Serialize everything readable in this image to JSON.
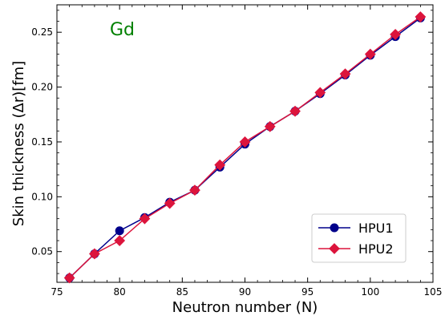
{
  "chart_data": {
    "type": "line",
    "annotation": "Gd",
    "annotation_color": "#008000",
    "xlabel": "Neutron number (N)",
    "ylabel": "Skin thickness (Δr)[fm]",
    "xlim": [
      75,
      105
    ],
    "ylim": [
      0.022,
      0.275
    ],
    "x_ticks": [
      75,
      80,
      85,
      90,
      95,
      100,
      105
    ],
    "y_ticks": [
      0.05,
      0.1,
      0.15,
      0.2,
      0.25
    ],
    "y_tick_labels": [
      "0.05",
      "0.10",
      "0.15",
      "0.20",
      "0.25"
    ],
    "x": [
      76,
      78,
      80,
      82,
      84,
      86,
      88,
      90,
      92,
      94,
      96,
      98,
      100,
      102,
      104
    ],
    "series": [
      {
        "name": "HPU1",
        "color": "#00008B",
        "marker": "circle",
        "values": [
          0.026,
          0.048,
          0.069,
          0.081,
          0.095,
          0.106,
          0.127,
          0.148,
          0.164,
          0.178,
          0.194,
          0.211,
          0.229,
          0.246,
          0.263
        ]
      },
      {
        "name": "HPU2",
        "color": "#DC143C",
        "marker": "diamond",
        "values": [
          0.026,
          0.048,
          0.06,
          0.08,
          0.094,
          0.106,
          0.129,
          0.15,
          0.164,
          0.178,
          0.195,
          0.212,
          0.23,
          0.248,
          0.264
        ]
      }
    ],
    "legend_position": "lower-right",
    "grid": false
  }
}
